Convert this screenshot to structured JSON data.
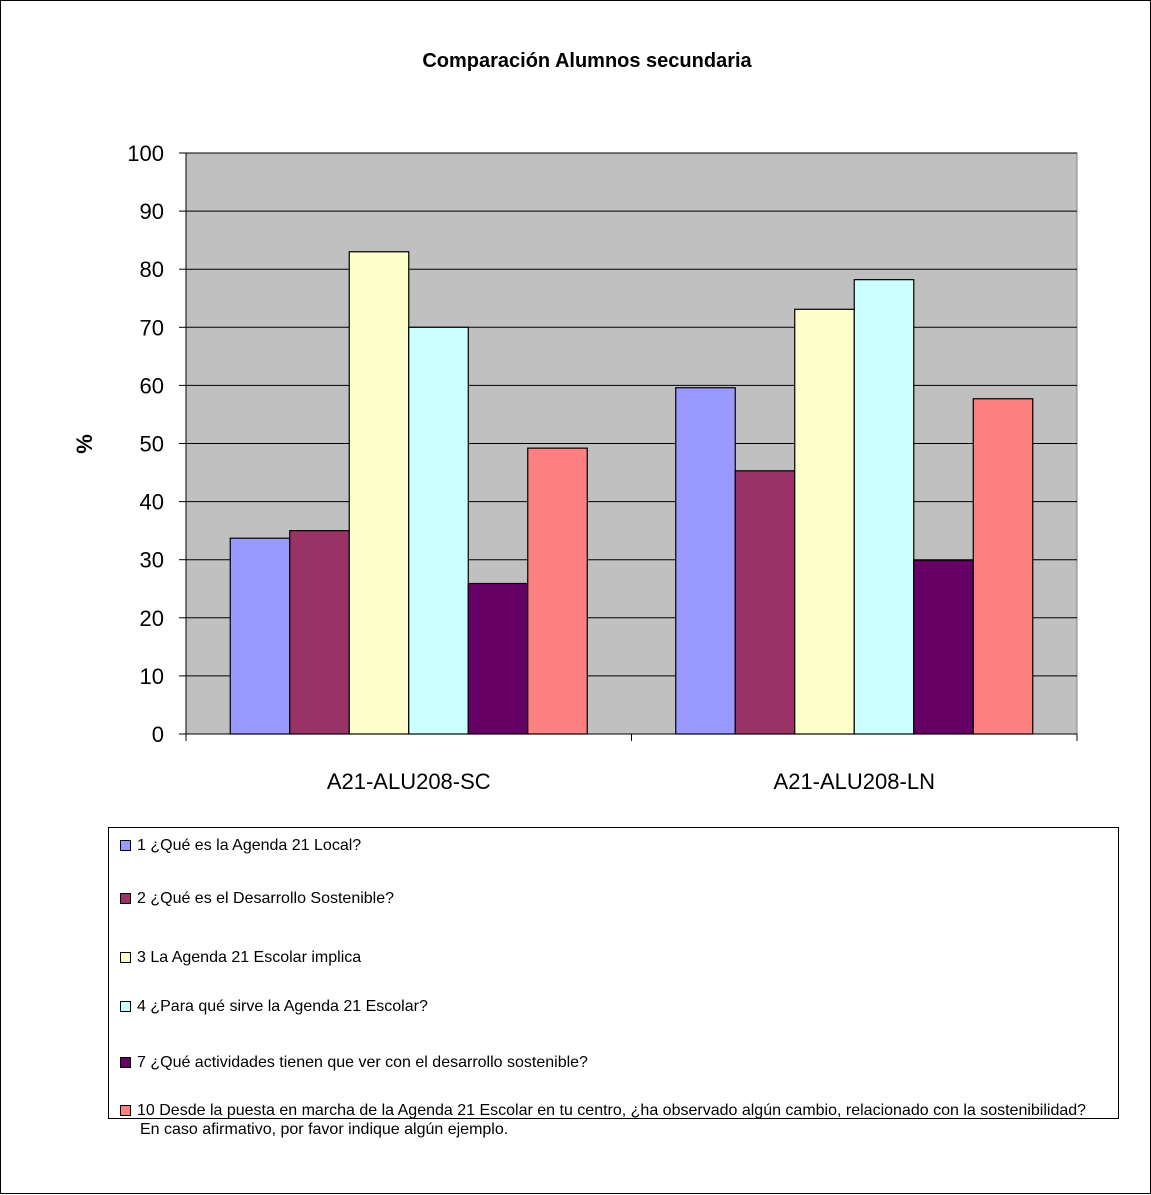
{
  "chart_data": {
    "type": "bar",
    "title": "Comparación Alumnos secundaria",
    "xlabel": "",
    "ylabel": "%",
    "ylim": [
      0,
      100
    ],
    "yticks": [
      0,
      10,
      20,
      30,
      40,
      50,
      60,
      70,
      80,
      90,
      100
    ],
    "grid": true,
    "legend_position": "bottom",
    "categories": [
      "A21-ALU208-SC",
      "A21-ALU208-LN"
    ],
    "series": [
      {
        "name": "1 ¿Qué es la Agenda 21 Local?",
        "color": "#9999ff",
        "values": [
          33.7,
          59.6
        ]
      },
      {
        "name": "2 ¿Qué es el Desarrollo Sostenible?",
        "color": "#993366",
        "values": [
          35.0,
          45.3
        ]
      },
      {
        "name": "3 La Agenda 21 Escolar implica",
        "color": "#ffffcc",
        "values": [
          83.0,
          73.1
        ]
      },
      {
        "name": "4 ¿Para qué sirve la Agenda 21 Escolar?",
        "color": "#ccffff",
        "values": [
          70.0,
          78.2
        ]
      },
      {
        "name": "7 ¿Qué actividades tienen que ver con el desarrollo sostenible?",
        "color": "#660066",
        "values": [
          25.9,
          29.9
        ]
      },
      {
        "name": "10 Desde la puesta en marcha de la Agenda 21 Escolar en tu centro, ¿ha observado algún cambio, relacionado con la sostenibilidad? En caso afirmativo, por favor indique algún ejemplo.",
        "color": "#ff8080",
        "values": [
          49.2,
          57.7
        ]
      }
    ],
    "plot_background": "#c0c0c0"
  }
}
